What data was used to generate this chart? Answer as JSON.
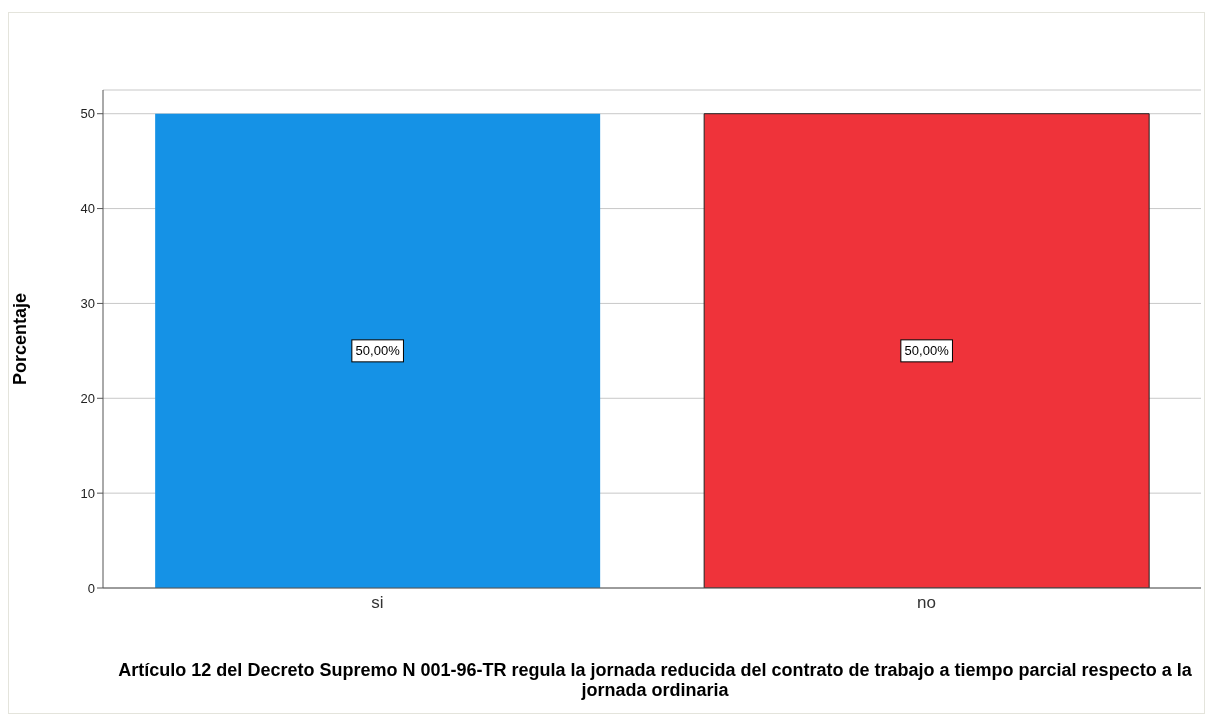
{
  "chart_data": {
    "type": "bar",
    "xlabel": "Artículo 12 del Decreto Supremo N 001-96-TR regula  la  jornada reducida del contrato de trabajo a tiempo parcial respecto a la jornada ordinaria",
    "ylabel": "Porcentaje",
    "categories": [
      "si",
      "no"
    ],
    "values": [
      50,
      50
    ],
    "colors": [
      "#1592e6",
      "#ef333a"
    ],
    "value_labels": [
      "50,00%",
      "50,00%"
    ],
    "ylim": [
      0,
      52.5
    ],
    "yticks": [
      0,
      10,
      20,
      30,
      40,
      50
    ],
    "grid": "y",
    "legend": false
  }
}
